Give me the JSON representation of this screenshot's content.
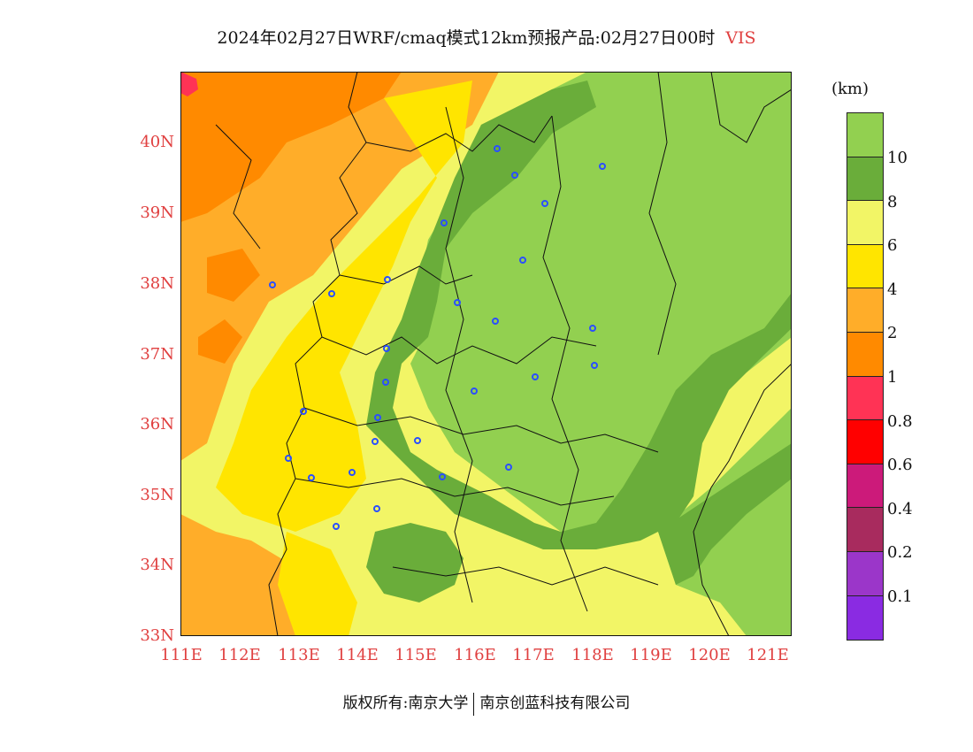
{
  "title": {
    "text": "2024年02月27日WRF/cmaq模式12km预报产品:02月27日00时",
    "variable": "VIS"
  },
  "map": {
    "lat_labels": [
      "40N",
      "39N",
      "38N",
      "37N",
      "36N",
      "35N",
      "34N",
      "33N"
    ],
    "lon_labels": [
      "111E",
      "112E",
      "113E",
      "114E",
      "115E",
      "116E",
      "117E",
      "118E",
      "119E",
      "120E",
      "121E"
    ],
    "lat_range": [
      33,
      41
    ],
    "lon_range": [
      111,
      121.4
    ]
  },
  "legend": {
    "unit": "(km)",
    "labels": [
      "10",
      "8",
      "6",
      "4",
      "2",
      "1",
      "0.8",
      "0.6",
      "0.4",
      "0.2",
      "0.1"
    ],
    "colors": [
      "#92d050",
      "#6aad3a",
      "#f2f566",
      "#ffe500",
      "#ffad29",
      "#ff8a00",
      "#ff3355",
      "#ff0000",
      "#cc1a7a",
      "#a82b5e",
      "#9b36c9",
      "#8a2be2"
    ]
  },
  "footer": {
    "left": "版权所有:南京大学",
    "right": "南京创蓝科技有限公司"
  }
}
